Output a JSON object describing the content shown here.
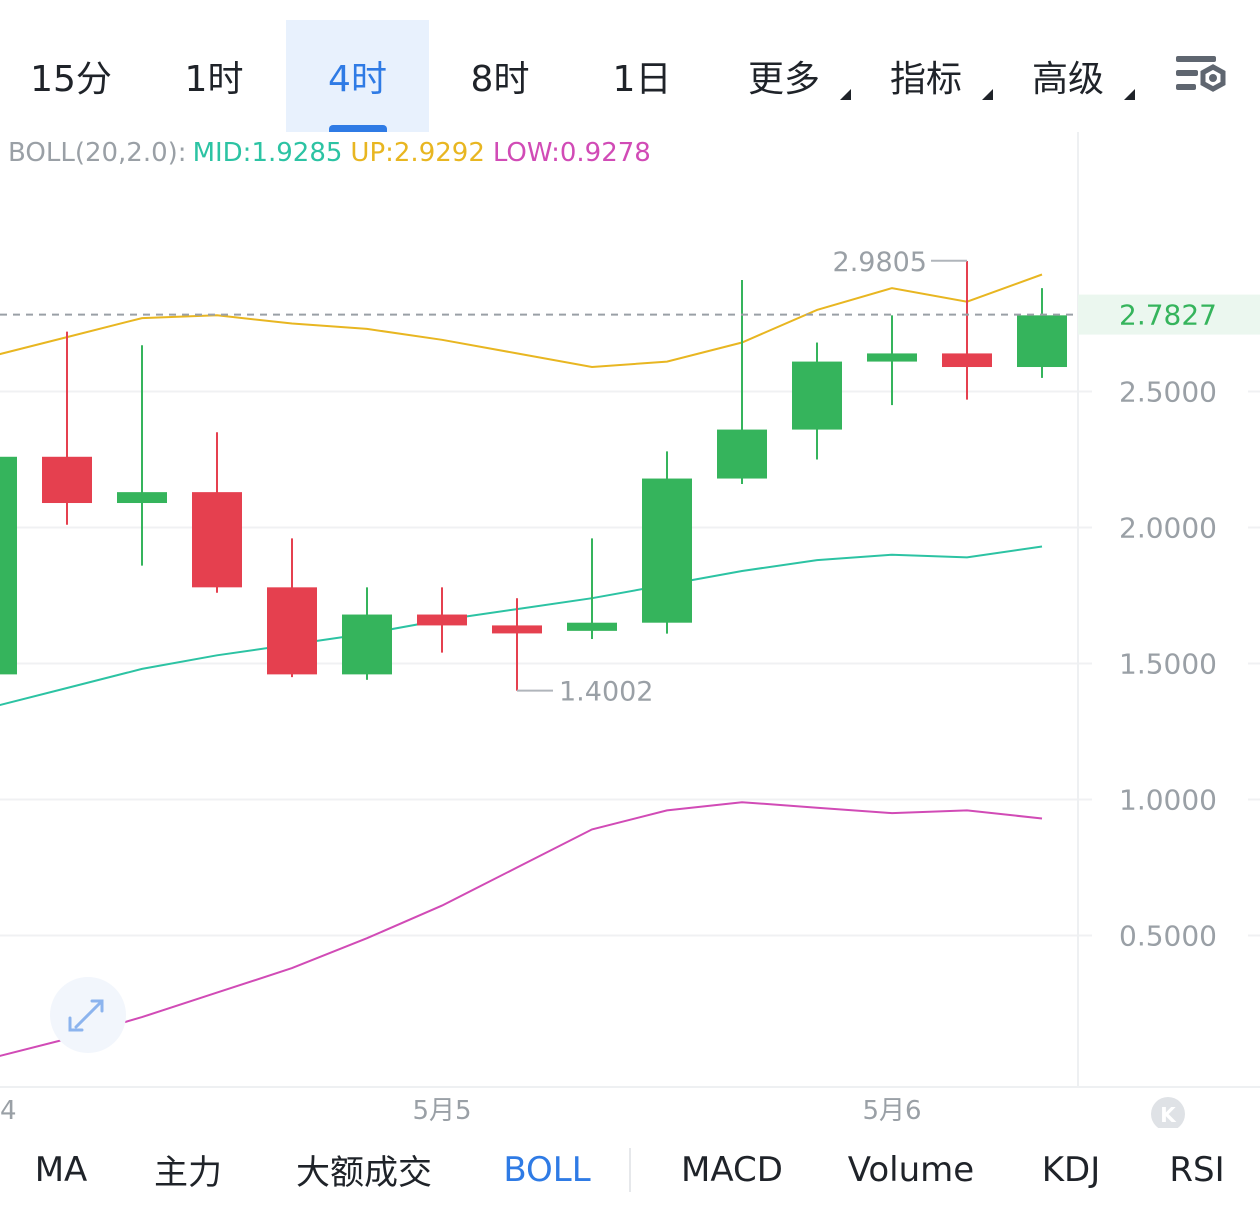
{
  "timeframes": [
    {
      "label": "15分",
      "active": false
    },
    {
      "label": "1时",
      "active": false
    },
    {
      "label": "4时",
      "active": true
    },
    {
      "label": "8时",
      "active": false
    },
    {
      "label": "1日",
      "active": false
    },
    {
      "label": "更多",
      "active": false,
      "dropdown": true
    },
    {
      "label": "指标",
      "active": false,
      "dropdown": true
    },
    {
      "label": "高级",
      "active": false,
      "dropdown": true
    }
  ],
  "settings_icon": "chart-settings-icon",
  "boll_legend": {
    "prefix": "BOLL(20,2.0):",
    "mid": "MID:1.9285",
    "up": "UP:2.9292",
    "low": "LOW:0.9278"
  },
  "colors": {
    "up_candle": "#35b45c",
    "down_candle": "#e5404f",
    "mid_line": "#2cc3a3",
    "up_line": "#e8b621",
    "low_line": "#d14bb6",
    "accent": "#2f7be5",
    "current_price": "#35b45c"
  },
  "indicator_tabs": [
    {
      "label": "MA",
      "active": false
    },
    {
      "label": "主力",
      "active": false
    },
    {
      "label": "大额成交",
      "active": false
    },
    {
      "label": "BOLL",
      "active": true
    },
    {
      "label": "MACD",
      "active": false
    },
    {
      "label": "Volume",
      "active": false
    },
    {
      "label": "KDJ",
      "active": false
    },
    {
      "label": "RSI",
      "active": false
    }
  ],
  "chart_data": {
    "type": "candlestick",
    "title": "",
    "xlabel": "",
    "ylabel": "",
    "ylim": [
      0.05,
      3.0
    ],
    "y_ticks": [
      "2.5000",
      "2.0000",
      "1.5000",
      "1.0000",
      "0.5000"
    ],
    "x_ticks": [
      "4",
      "5月5",
      "5月6"
    ],
    "current_price": "2.7827",
    "max_marker": "2.9805",
    "min_marker": "1.4002",
    "candles": [
      {
        "open": 1.46,
        "close": 2.26,
        "high": 2.26,
        "low": 1.46
      },
      {
        "open": 2.26,
        "close": 2.09,
        "high": 2.72,
        "low": 2.01
      },
      {
        "open": 2.09,
        "close": 2.13,
        "high": 2.67,
        "low": 1.86
      },
      {
        "open": 2.13,
        "close": 1.78,
        "high": 2.35,
        "low": 1.76
      },
      {
        "open": 1.78,
        "close": 1.46,
        "high": 1.96,
        "low": 1.45
      },
      {
        "open": 1.46,
        "close": 1.68,
        "high": 1.78,
        "low": 1.44
      },
      {
        "open": 1.68,
        "close": 1.64,
        "high": 1.78,
        "low": 1.54
      },
      {
        "open": 1.64,
        "close": 1.62,
        "high": 1.74,
        "low": 1.4
      },
      {
        "open": 1.62,
        "close": 1.65,
        "high": 1.96,
        "low": 1.59
      },
      {
        "open": 1.65,
        "close": 2.18,
        "high": 2.28,
        "low": 1.61
      },
      {
        "open": 2.18,
        "close": 2.36,
        "high": 2.91,
        "low": 2.16
      },
      {
        "open": 2.36,
        "close": 2.61,
        "high": 2.68,
        "low": 2.25
      },
      {
        "open": 2.61,
        "close": 2.64,
        "high": 2.78,
        "low": 2.45
      },
      {
        "open": 2.64,
        "close": 2.59,
        "high": 2.98,
        "low": 2.47
      },
      {
        "open": 2.59,
        "close": 2.78,
        "high": 2.88,
        "low": 2.55
      }
    ],
    "series": [
      {
        "name": "UP",
        "values": [
          2.63,
          2.7,
          2.77,
          2.78,
          2.75,
          2.73,
          2.69,
          2.64,
          2.59,
          2.61,
          2.68,
          2.8,
          2.88,
          2.83,
          2.93
        ]
      },
      {
        "name": "MID",
        "values": [
          1.34,
          1.41,
          1.48,
          1.53,
          1.57,
          1.61,
          1.66,
          1.7,
          1.74,
          1.79,
          1.84,
          1.88,
          1.9,
          1.89,
          1.93
        ]
      },
      {
        "name": "LOW",
        "values": [
          0.05,
          0.12,
          0.2,
          0.29,
          0.38,
          0.49,
          0.61,
          0.75,
          0.89,
          0.96,
          0.99,
          0.97,
          0.95,
          0.96,
          0.93
        ]
      }
    ]
  }
}
